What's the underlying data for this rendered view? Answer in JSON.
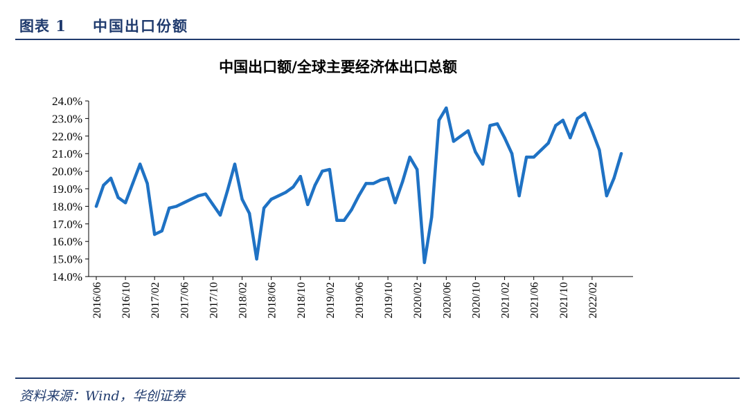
{
  "header": {
    "figure_label": "图表 1",
    "figure_title": "中国出口份额"
  },
  "footer": {
    "source": "资料来源：Wind，华创证券"
  },
  "colors": {
    "accent": "#1f3a6d",
    "series": "#1f72c4"
  },
  "chart_data": {
    "type": "line",
    "title": "中国出口额/全球主要经济体出口总额",
    "xlabel": "",
    "ylabel": "",
    "ylim": [
      14.0,
      24.0
    ],
    "yticks": [
      "14.0%",
      "15.0%",
      "16.0%",
      "17.0%",
      "18.0%",
      "19.0%",
      "20.0%",
      "21.0%",
      "22.0%",
      "23.0%",
      "24.0%"
    ],
    "xtick_labels": [
      "2016/06",
      "2016/10",
      "2017/02",
      "2017/06",
      "2017/10",
      "2018/02",
      "2018/06",
      "2018/10",
      "2019/02",
      "2019/06",
      "2019/10",
      "2020/02",
      "2020/06",
      "2020/10",
      "2021/02",
      "2021/06",
      "2021/10",
      "2022/02"
    ],
    "xtick_every": 4,
    "start": "2016/06",
    "series": [
      {
        "name": "中国出口额/全球主要经济体出口总额",
        "values": [
          18.0,
          19.2,
          19.6,
          18.5,
          18.2,
          19.3,
          20.4,
          19.3,
          16.4,
          16.6,
          17.9,
          18.0,
          18.2,
          18.4,
          18.6,
          18.7,
          18.1,
          17.5,
          18.9,
          20.4,
          18.4,
          17.6,
          15.0,
          17.9,
          18.4,
          18.6,
          18.8,
          19.1,
          19.7,
          18.1,
          19.2,
          20.0,
          20.1,
          17.2,
          17.2,
          17.8,
          18.6,
          19.3,
          19.3,
          19.5,
          19.6,
          18.2,
          19.4,
          20.8,
          20.1,
          14.8,
          17.4,
          22.9,
          23.6,
          21.7,
          22.0,
          22.3,
          21.1,
          20.4,
          22.6,
          22.7,
          21.9,
          21.0,
          18.6,
          20.8,
          20.8,
          21.2,
          21.6,
          22.6,
          22.9,
          21.9,
          23.0,
          23.3,
          22.3,
          21.2,
          18.6,
          19.6,
          21.0
        ]
      }
    ]
  }
}
